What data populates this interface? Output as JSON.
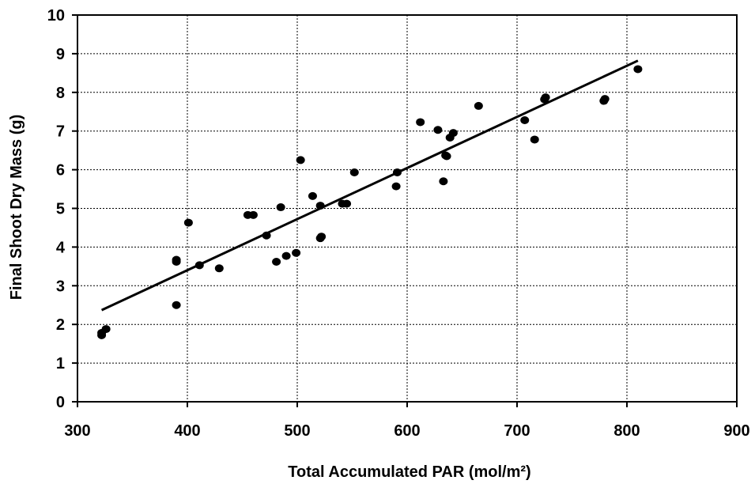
{
  "chart_data": {
    "type": "scatter",
    "title": "",
    "xlabel": "Total Accumulated PAR (mol/m²)",
    "ylabel": "Final Shoot Dry Mass (g)",
    "xlim": [
      300,
      900
    ],
    "ylim": [
      0,
      10
    ],
    "x_ticks": [
      "300",
      "400",
      "500",
      "600",
      "700",
      "800",
      "900"
    ],
    "y_ticks": [
      "0",
      "1",
      "2",
      "3",
      "4",
      "5",
      "6",
      "7",
      "8",
      "9",
      "10"
    ],
    "grid": true,
    "legend": "none",
    "series": [
      {
        "marker": "circle",
        "color": "#000000",
        "x": [
          322,
          322,
          326,
          390,
          390,
          390,
          401,
          411,
          429,
          455,
          460,
          472,
          481,
          485,
          490,
          499,
          503,
          514,
          521,
          521,
          522,
          541,
          545,
          552,
          590,
          591,
          612,
          628,
          633,
          635,
          636,
          639,
          642,
          665,
          707,
          716,
          725,
          726,
          779,
          780,
          810
        ],
        "y": [
          1.72,
          1.78,
          1.88,
          3.62,
          3.67,
          2.5,
          4.63,
          3.53,
          3.45,
          4.83,
          4.83,
          4.3,
          3.62,
          5.03,
          3.77,
          3.85,
          6.25,
          5.32,
          5.07,
          4.23,
          4.27,
          5.12,
          5.12,
          5.93,
          5.57,
          5.93,
          7.23,
          7.03,
          5.7,
          6.37,
          6.35,
          6.83,
          6.95,
          7.65,
          7.28,
          6.78,
          7.82,
          7.87,
          7.78,
          7.83,
          8.6
        ]
      }
    ],
    "trendline": {
      "type": "linear",
      "x": [
        322,
        810
      ],
      "y": [
        2.37,
        8.82
      ]
    }
  }
}
